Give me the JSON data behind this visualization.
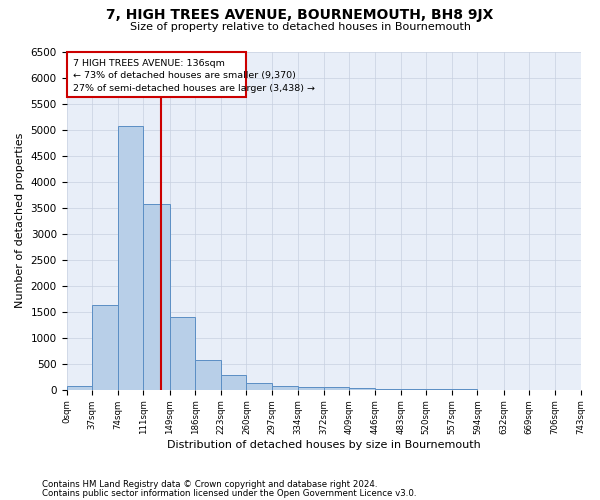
{
  "title": "7, HIGH TREES AVENUE, BOURNEMOUTH, BH8 9JX",
  "subtitle": "Size of property relative to detached houses in Bournemouth",
  "xlabel": "Distribution of detached houses by size in Bournemouth",
  "ylabel": "Number of detached properties",
  "footnote1": "Contains HM Land Registry data © Crown copyright and database right 2024.",
  "footnote2": "Contains public sector information licensed under the Open Government Licence v3.0.",
  "property_size": 136,
  "property_label": "7 HIGH TREES AVENUE: 136sqm",
  "annotation_line1": "← 73% of detached houses are smaller (9,370)",
  "annotation_line2": "27% of semi-detached houses are larger (3,438) →",
  "bar_color": "#b8cfe8",
  "bar_edge_color": "#5b8ec4",
  "vline_color": "#cc0000",
  "annotation_box_color": "#cc0000",
  "bg_color": "#e8eef8",
  "grid_color": "#c8d0e0",
  "bin_edges": [
    0,
    37,
    74,
    111,
    149,
    186,
    223,
    260,
    297,
    334,
    372,
    409,
    446,
    483,
    520,
    557,
    594,
    632,
    669,
    706,
    743
  ],
  "bar_heights": [
    75,
    1625,
    5075,
    3575,
    1400,
    575,
    290,
    130,
    80,
    60,
    50,
    30,
    20,
    15,
    10,
    10,
    5,
    5,
    5,
    5
  ],
  "ylim": [
    0,
    6500
  ],
  "yticks": [
    0,
    500,
    1000,
    1500,
    2000,
    2500,
    3000,
    3500,
    4000,
    4500,
    5000,
    5500,
    6000,
    6500
  ]
}
